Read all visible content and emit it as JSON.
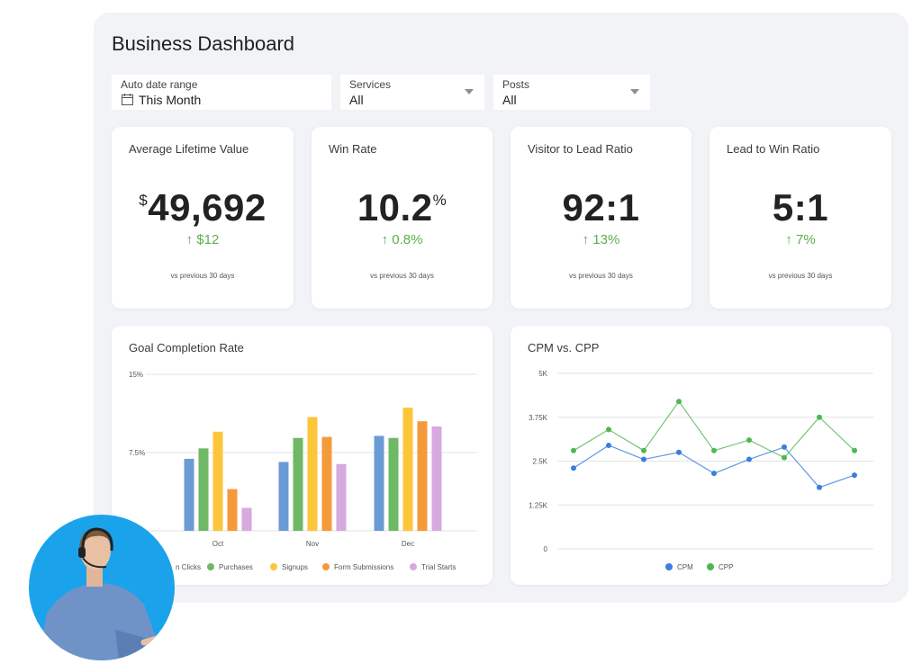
{
  "header": {
    "title": "Business Dashboard"
  },
  "filters": {
    "date": {
      "label": "Auto date range",
      "value": "This Month"
    },
    "services": {
      "label": "Services",
      "value": "All"
    },
    "posts": {
      "label": "Posts",
      "value": "All"
    }
  },
  "kpis": [
    {
      "label": "Average Lifetime Value",
      "prefix": "$",
      "value": "49,692",
      "suffix": "",
      "delta": "↑ $12",
      "foot": "vs previous 30 days"
    },
    {
      "label": "Win Rate",
      "prefix": "",
      "value": "10.2",
      "suffix": "%",
      "delta": "↑ 0.8%",
      "foot": "vs previous 30 days"
    },
    {
      "label": "Visitor to Lead Ratio",
      "prefix": "",
      "value": "92:1",
      "suffix": "",
      "delta": "↑ 13%",
      "foot": "vs previous 30 days"
    },
    {
      "label": "Lead to Win Ratio",
      "prefix": "",
      "value": "5:1",
      "suffix": "",
      "delta": "↑ 7%",
      "foot": "vs previous 30 days"
    }
  ],
  "colors": {
    "delta_up": "#5cae4c"
  },
  "chart_data": [
    {
      "type": "bar",
      "title": "Goal Completion Rate",
      "categories": [
        "Oct",
        "Nov",
        "Dec"
      ],
      "ylim": [
        0,
        15
      ],
      "yticks": [
        "15%",
        "7.5%"
      ],
      "ytick_values": [
        15,
        7.5
      ],
      "grid": true,
      "legend_position": "bottom",
      "series": [
        {
          "name": "Button Clicks",
          "legend_label": "n Clicks",
          "color": "#6b9bd6",
          "values": [
            6.9,
            6.6,
            9.1
          ]
        },
        {
          "name": "Purchases",
          "legend_label": "Purchases",
          "color": "#6fb865",
          "values": [
            7.9,
            8.9,
            8.9
          ]
        },
        {
          "name": "Signups",
          "legend_label": "Signups",
          "color": "#fdc63a",
          "values": [
            9.5,
            10.9,
            11.8
          ]
        },
        {
          "name": "Form Submissions",
          "legend_label": "Form Submissions",
          "color": "#f59a3b",
          "values": [
            4.0,
            9.0,
            10.5
          ]
        },
        {
          "name": "Trial Starts",
          "legend_label": "Trial Starts",
          "color": "#d6a9df",
          "values": [
            2.2,
            6.4,
            10.0
          ]
        }
      ]
    },
    {
      "type": "line",
      "title": "CPM vs. CPP",
      "x": [
        1,
        2,
        3,
        4,
        5,
        6,
        7,
        8,
        9
      ],
      "ylim": [
        0,
        5000
      ],
      "yticks": [
        "5K",
        "3.75K",
        "2.5K",
        "1.25K",
        "0"
      ],
      "ytick_values": [
        5000,
        3750,
        2500,
        1250,
        0
      ],
      "grid": true,
      "legend_position": "bottom",
      "series": [
        {
          "name": "CPM",
          "color": "#3a7ee0",
          "values": [
            2300,
            2950,
            2550,
            2750,
            2150,
            2550,
            2900,
            1750,
            2100
          ]
        },
        {
          "name": "CPP",
          "color": "#4fb750",
          "values": [
            2800,
            3400,
            2800,
            4200,
            2800,
            3100,
            2600,
            3750,
            2800
          ]
        }
      ]
    }
  ]
}
